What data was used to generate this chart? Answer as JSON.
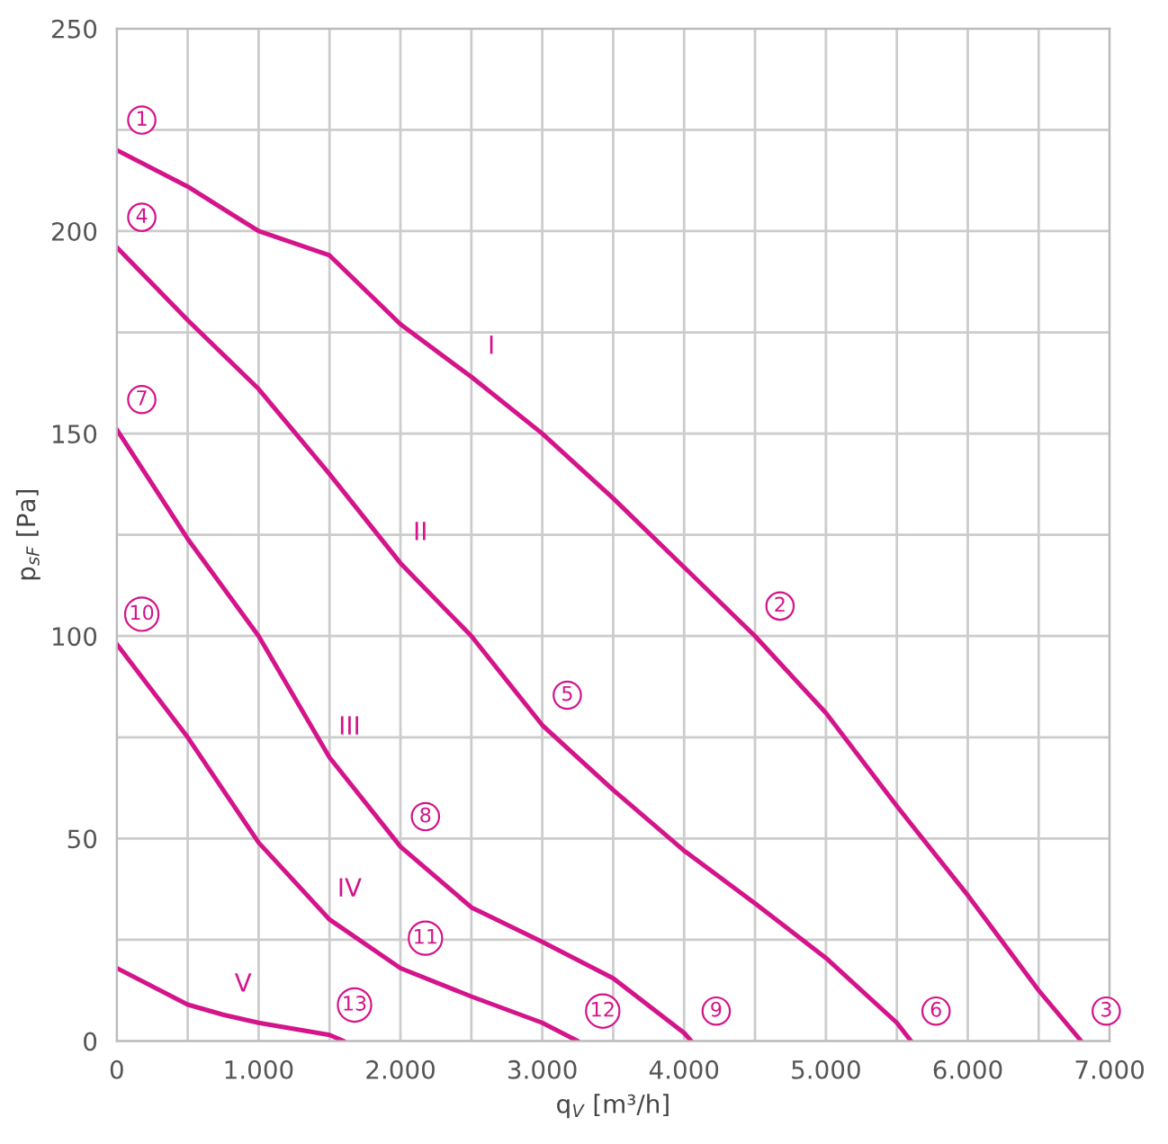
{
  "chart_data": {
    "type": "line",
    "xlabel": "q$_{V}$ [m³/h]",
    "ylabel": "p$_{sF}$ [Pa]",
    "xlim": [
      0,
      7000
    ],
    "ylim": [
      0,
      250
    ],
    "xticks": [
      0,
      {
        "value": 500,
        "label": null
      },
      {
        "value": 1000,
        "label": "1.000"
      },
      {
        "value": 1500,
        "label": null
      },
      {
        "value": 2000,
        "label": "2.000"
      },
      {
        "value": 2500,
        "label": null
      },
      {
        "value": 3000,
        "label": "3.000"
      },
      {
        "value": 3500,
        "label": null
      },
      {
        "value": 4000,
        "label": "4.000"
      },
      {
        "value": 4500,
        "label": null
      },
      {
        "value": 5000,
        "label": "5.000"
      },
      {
        "value": 5500,
        "label": null
      },
      {
        "value": 6000,
        "label": "6.000"
      },
      {
        "value": 6500,
        "label": null
      },
      {
        "value": 7000,
        "label": "7.000"
      }
    ],
    "yticks": [
      0,
      {
        "value": 25,
        "label": null
      },
      50,
      {
        "value": 75,
        "label": null
      },
      100,
      {
        "value": 125,
        "label": null
      },
      150,
      {
        "value": 175,
        "label": null
      },
      200,
      {
        "value": 225,
        "label": null
      },
      250
    ],
    "grid": true,
    "marker": "none",
    "line_style": "solid",
    "legend": false,
    "series": [
      {
        "name": "I",
        "color": "#d4148a",
        "x": [
          0,
          500,
          1000,
          1500,
          2000,
          2500,
          3000,
          3500,
          4000,
          4500,
          5000,
          5500,
          6000,
          6500,
          6800
        ],
        "values": [
          220,
          211,
          200,
          194,
          177,
          164,
          150,
          134,
          117,
          100,
          81,
          58,
          36,
          12.5,
          0
        ]
      },
      {
        "name": "II",
        "color": "#d4148a",
        "x": [
          0,
          500,
          1000,
          1500,
          2000,
          2500,
          3000,
          3500,
          4000,
          4500,
          5000,
          5500,
          5600
        ],
        "values": [
          196,
          178,
          161,
          140,
          118,
          100,
          78,
          62,
          47,
          34,
          20.5,
          4.5,
          0
        ]
      },
      {
        "name": "III",
        "color": "#d4148a",
        "x": [
          0,
          500,
          1000,
          1500,
          2000,
          2500,
          3000,
          3500,
          4000,
          4050
        ],
        "values": [
          151,
          124,
          100,
          70,
          48,
          33,
          24.5,
          15.5,
          2,
          0
        ]
      },
      {
        "name": "IV",
        "color": "#d4148a",
        "x": [
          0,
          500,
          1000,
          1500,
          2000,
          2500,
          3000,
          3250
        ],
        "values": [
          98,
          75,
          49,
          30,
          18,
          11,
          4.5,
          0
        ]
      },
      {
        "name": "V",
        "color": "#d4148a",
        "x": [
          0,
          500,
          750,
          1000,
          1500,
          1600
        ],
        "values": [
          18,
          9,
          6.5,
          4.5,
          1.5,
          0
        ]
      }
    ],
    "annotations": [
      {
        "text": "1",
        "x": 0,
        "y": 220
      },
      {
        "text": "2",
        "x": 4500,
        "y": 100
      },
      {
        "text": "3",
        "x": 6800,
        "y": 0
      },
      {
        "text": "4",
        "x": 0,
        "y": 196
      },
      {
        "text": "5",
        "x": 3000,
        "y": 78
      },
      {
        "text": "6",
        "x": 5600,
        "y": 0
      },
      {
        "text": "7",
        "x": 0,
        "y": 151
      },
      {
        "text": "8",
        "x": 2000,
        "y": 48
      },
      {
        "text": "9",
        "x": 4050,
        "y": 0
      },
      {
        "text": "10",
        "x": 0,
        "y": 98
      },
      {
        "text": "11",
        "x": 2000,
        "y": 18
      },
      {
        "text": "12",
        "x": 3250,
        "y": 0
      },
      {
        "text": "13",
        "x": 1500,
        "y": 1.5
      }
    ]
  }
}
